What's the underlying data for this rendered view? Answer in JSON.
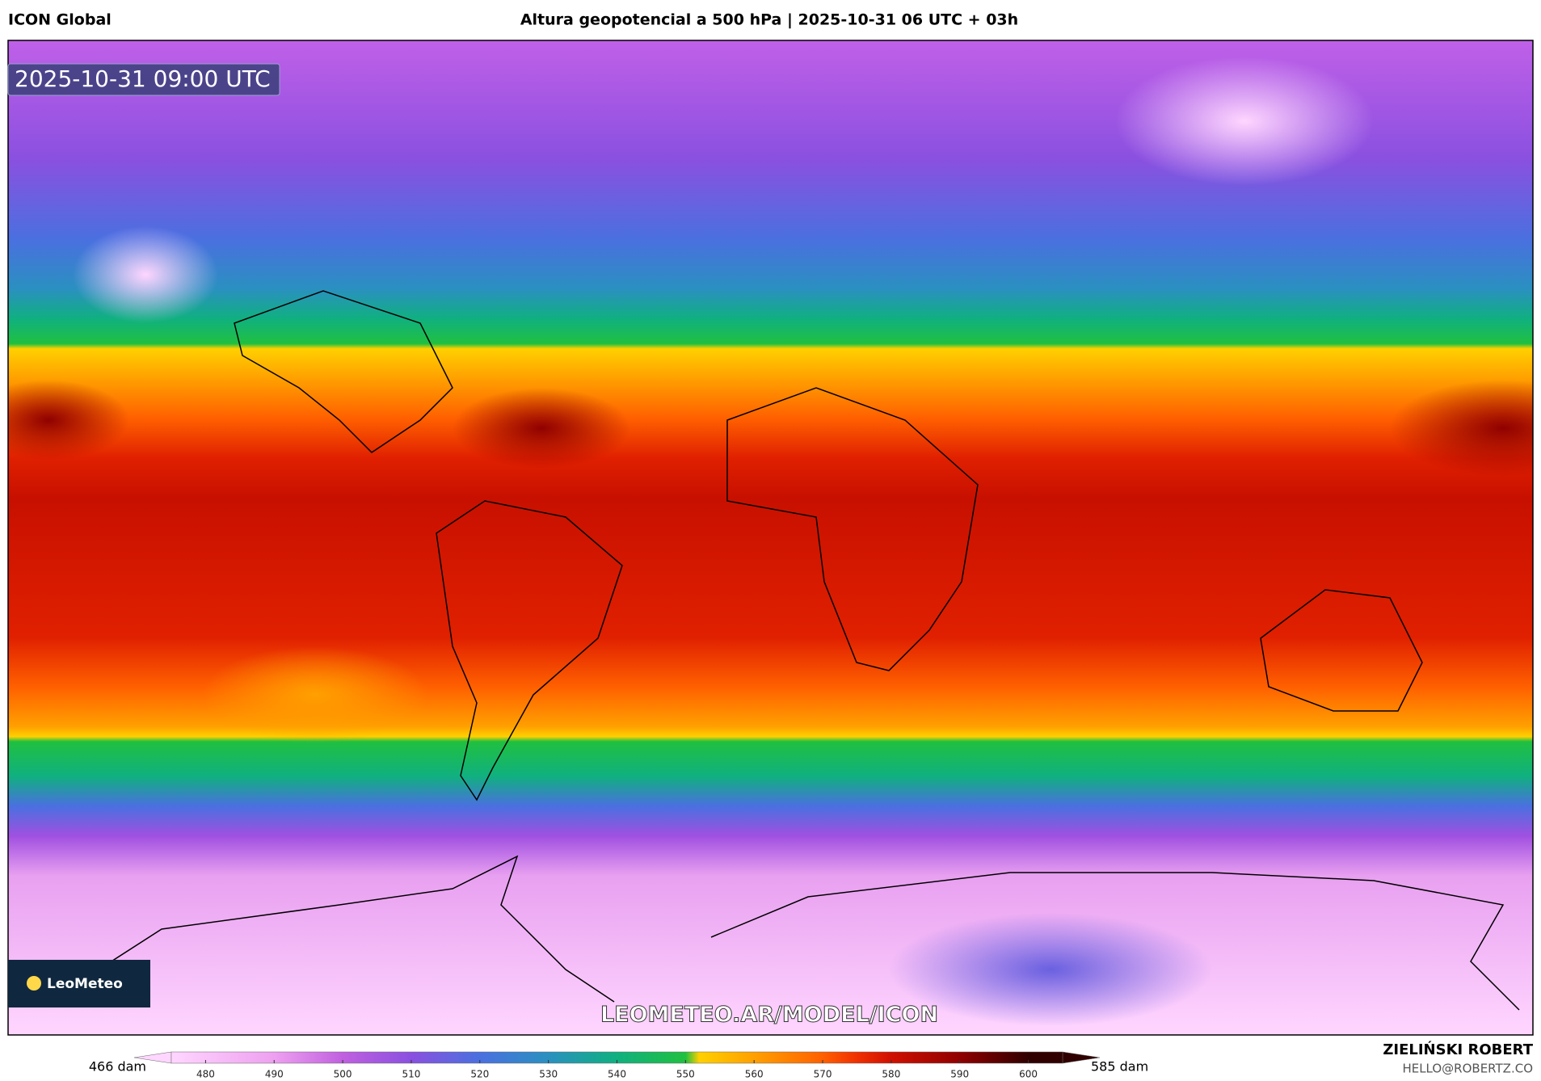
{
  "header": {
    "left": "ICON Global",
    "title": "Altura geopotencial a 500 hPa | 2025-10-31 06 UTC + 03h"
  },
  "map": {
    "timestamp": "2025-10-31 09:00 UTC",
    "watermark": "LEOMETEO.AR/MODEL/ICON",
    "logo": "LeoMeteo"
  },
  "colorbar": {
    "min_label": "466 dam",
    "max_label": "585 dam",
    "lim": [
      475,
      605
    ],
    "ticks": [
      480,
      490,
      500,
      510,
      520,
      530,
      540,
      550,
      560,
      570,
      580,
      590,
      600
    ],
    "colormap": [
      {
        "value": 475,
        "color": "#ffd6ff"
      },
      {
        "value": 490,
        "color": "#eea0f0"
      },
      {
        "value": 500,
        "color": "#c060e0"
      },
      {
        "value": 510,
        "color": "#8a50e0"
      },
      {
        "value": 520,
        "color": "#4a70e0"
      },
      {
        "value": 530,
        "color": "#2a90c0"
      },
      {
        "value": 540,
        "color": "#10b080"
      },
      {
        "value": 550,
        "color": "#20c040"
      },
      {
        "value": 552,
        "color": "#ffd000"
      },
      {
        "value": 560,
        "color": "#ffa000"
      },
      {
        "value": 570,
        "color": "#ff6000"
      },
      {
        "value": 575,
        "color": "#f03000"
      },
      {
        "value": 580,
        "color": "#d01000"
      },
      {
        "value": 590,
        "color": "#900000"
      },
      {
        "value": 600,
        "color": "#300000"
      }
    ]
  },
  "footer": {
    "author": "ZIELIŃSKI ROBERT",
    "email": "HELLO@ROBERTZ.CO"
  }
}
